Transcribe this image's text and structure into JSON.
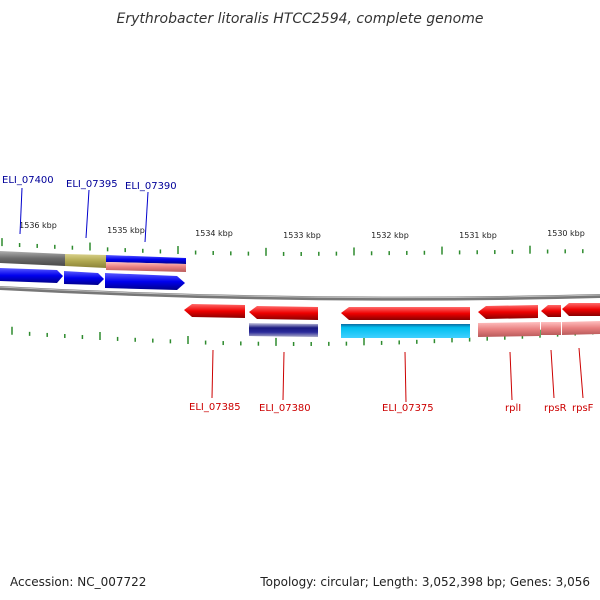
{
  "title": "Erythrobacter litoralis HTCC2594, complete genome",
  "footer": {
    "accession": "Accession: NC_007722",
    "topology": "Topology: circular; Length: 3,052,398 bp; Genes: 3,056"
  },
  "scale_ticks": [
    "1536 kbp",
    "1535 kbp",
    "1534 kbp",
    "1533 kbp",
    "1532 kbp",
    "1531 kbp",
    "1530 kbp"
  ],
  "colors": {
    "forward_gene": "#0000ee",
    "reverse_gene": "#ee0000",
    "forward_label": "#000099",
    "reverse_label": "#cc0000",
    "backbone": "#808080",
    "tick": "#2e8b2e",
    "cyan_feature": "#00bfef",
    "navy_feature": "#1a1a80",
    "pink_feature": "#e88080",
    "olive_feature": "#b0a850"
  },
  "forward_labels": [
    "ELI_07400",
    "ELI_07395",
    "ELI_07390"
  ],
  "reverse_labels": [
    "ELI_07385",
    "ELI_07380",
    "ELI_07375",
    "rplI",
    "rpsR",
    "rpsF"
  ]
}
